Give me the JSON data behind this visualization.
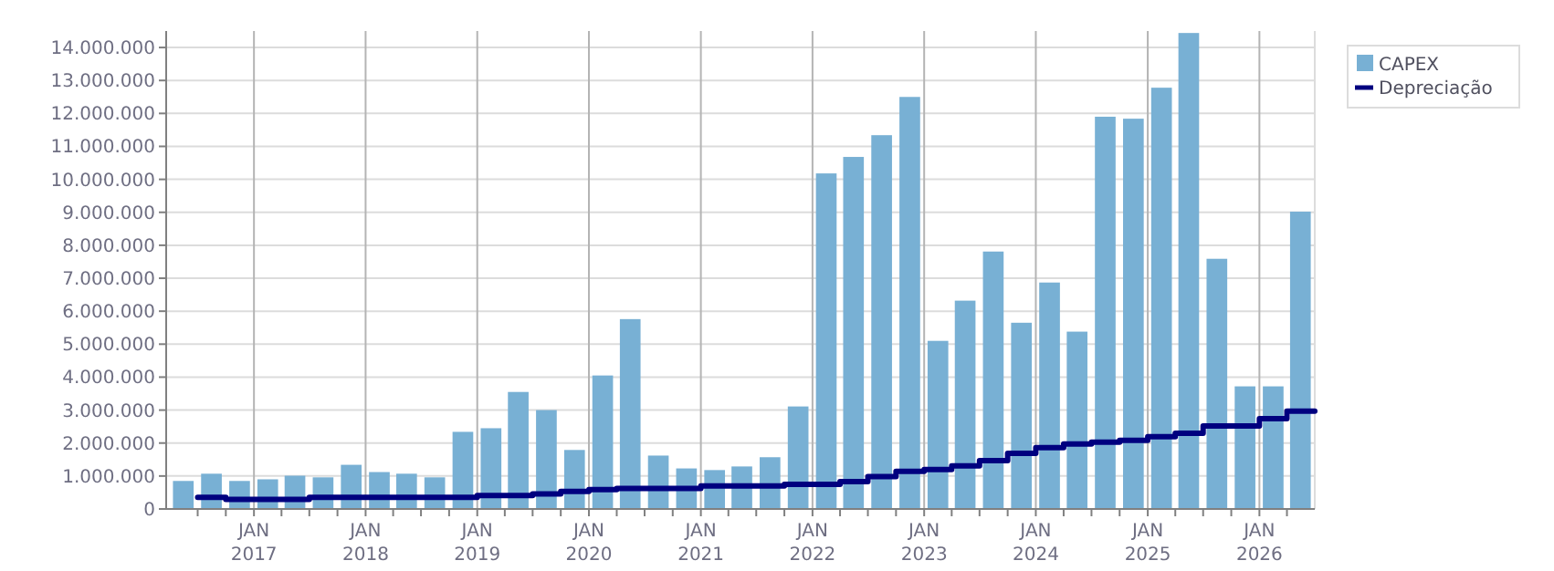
{
  "chart_data": {
    "type": "bar",
    "x": [
      "2016-05-15",
      "2016-08-15",
      "2016-11-15",
      "2017-02-15",
      "2017-05-15",
      "2017-08-15",
      "2017-11-15",
      "2018-02-15",
      "2018-05-15",
      "2018-08-15",
      "2018-11-15",
      "2019-02-15",
      "2019-05-15",
      "2019-08-15",
      "2019-11-15",
      "2020-02-15",
      "2020-05-15",
      "2020-08-15",
      "2020-11-15",
      "2021-02-15",
      "2021-05-15",
      "2021-08-15",
      "2021-11-15",
      "2022-02-15",
      "2022-05-15",
      "2022-08-15",
      "2022-11-15",
      "2023-02-15",
      "2023-05-15",
      "2023-08-15",
      "2023-11-15",
      "2024-02-15",
      "2024-05-15",
      "2024-08-15",
      "2024-11-15",
      "2025-02-15",
      "2025-05-15",
      "2025-08-15",
      "2025-11-15",
      "2026-02-15",
      "2026-05-15"
    ],
    "series": [
      {
        "name": "CAPEX",
        "color": "#78b0d4",
        "values": [
          850000,
          1070000,
          850000,
          900000,
          1010000,
          960000,
          1340000,
          1120000,
          1070000,
          960000,
          2340000,
          2450000,
          3550000,
          3000000,
          1790000,
          4050000,
          5760000,
          1620000,
          1230000,
          1180000,
          1290000,
          1570000,
          3110000,
          10180000,
          10680000,
          11340000,
          12500000,
          5100000,
          6320000,
          7810000,
          5650000,
          6870000,
          5380000,
          11900000,
          11840000,
          12780000,
          14440000,
          7590000,
          3720000,
          3720000,
          9020000
        ]
      },
      {
        "name": "Depreciação",
        "type": "step",
        "color": "#00007f",
        "x": [
          "2016-07-01",
          "2016-10-01",
          "2017-01-01",
          "2017-04-01",
          "2017-07-01",
          "2017-10-01",
          "2018-01-01",
          "2018-04-01",
          "2018-07-01",
          "2018-10-01",
          "2019-01-01",
          "2019-04-01",
          "2019-07-01",
          "2019-10-01",
          "2020-01-01",
          "2020-04-01",
          "2020-07-01",
          "2020-10-01",
          "2021-01-01",
          "2021-04-01",
          "2021-07-01",
          "2021-10-01",
          "2022-01-01",
          "2022-04-01",
          "2022-07-01",
          "2022-10-01",
          "2023-01-01",
          "2023-04-01",
          "2023-07-01",
          "2023-10-01",
          "2024-01-01",
          "2024-04-01",
          "2024-07-01",
          "2024-10-01",
          "2025-01-01",
          "2025-04-01",
          "2025-07-01",
          "2025-10-01",
          "2026-01-01",
          "2026-04-01",
          "2026-07-01"
        ],
        "values": [
          350000,
          290000,
          290000,
          290000,
          350000,
          350000,
          350000,
          350000,
          350000,
          350000,
          410000,
          410000,
          460000,
          530000,
          590000,
          620000,
          620000,
          620000,
          700000,
          700000,
          700000,
          750000,
          750000,
          830000,
          980000,
          1140000,
          1200000,
          1310000,
          1470000,
          1690000,
          1860000,
          1970000,
          2030000,
          2080000,
          2190000,
          2300000,
          2520000,
          2520000,
          2740000,
          2970000,
          2970000
        ]
      }
    ],
    "xlim": [
      "2016-03-20",
      "2026-07-01"
    ],
    "xticks": [
      {
        "value": "2016-07-01",
        "label": null
      },
      {
        "value": "2016-10-01",
        "label": null
      },
      {
        "value": "2017-01-01",
        "label": "JAN 2017"
      },
      {
        "value": "2017-04-01",
        "label": null
      },
      {
        "value": "2017-07-01",
        "label": null
      },
      {
        "value": "2017-10-01",
        "label": null
      },
      {
        "value": "2018-01-01",
        "label": "JAN 2018"
      },
      {
        "value": "2018-04-01",
        "label": null
      },
      {
        "value": "2018-07-01",
        "label": null
      },
      {
        "value": "2018-10-01",
        "label": null
      },
      {
        "value": "2019-01-01",
        "label": "JAN 2019"
      },
      {
        "value": "2019-04-01",
        "label": null
      },
      {
        "value": "2019-07-01",
        "label": null
      },
      {
        "value": "2019-10-01",
        "label": null
      },
      {
        "value": "2020-01-01",
        "label": "JAN 2020"
      },
      {
        "value": "2020-04-01",
        "label": null
      },
      {
        "value": "2020-07-01",
        "label": null
      },
      {
        "value": "2020-10-01",
        "label": null
      },
      {
        "value": "2021-01-01",
        "label": "JAN 2021"
      },
      {
        "value": "2021-04-01",
        "label": null
      },
      {
        "value": "2021-07-01",
        "label": null
      },
      {
        "value": "2021-10-01",
        "label": null
      },
      {
        "value": "2022-01-01",
        "label": "JAN 2022"
      },
      {
        "value": "2022-04-01",
        "label": null
      },
      {
        "value": "2022-07-01",
        "label": null
      },
      {
        "value": "2022-10-01",
        "label": null
      },
      {
        "value": "2023-01-01",
        "label": "JAN 2023"
      },
      {
        "value": "2023-04-01",
        "label": null
      },
      {
        "value": "2023-07-01",
        "label": null
      },
      {
        "value": "2023-10-01",
        "label": null
      },
      {
        "value": "2024-01-01",
        "label": "JAN 2024"
      },
      {
        "value": "2024-04-01",
        "label": null
      },
      {
        "value": "2024-07-01",
        "label": null
      },
      {
        "value": "2024-10-01",
        "label": null
      },
      {
        "value": "2025-01-01",
        "label": "JAN 2025"
      },
      {
        "value": "2025-04-01",
        "label": null
      },
      {
        "value": "2025-07-01",
        "label": null
      },
      {
        "value": "2025-10-01",
        "label": null
      },
      {
        "value": "2026-01-01",
        "label": "JAN 2026"
      },
      {
        "value": "2026-04-01",
        "label": null
      }
    ],
    "ylim": [
      0,
      14500000
    ],
    "yticks": [
      0,
      {
        "value": 1000000,
        "label": "1.000.000"
      },
      {
        "value": 2000000,
        "label": "2.000.000"
      },
      {
        "value": 3000000,
        "label": "3.000.000"
      },
      {
        "value": 4000000,
        "label": "4.000.000"
      },
      {
        "value": 5000000,
        "label": "5.000.000"
      },
      {
        "value": 6000000,
        "label": "6.000.000"
      },
      {
        "value": 7000000,
        "label": "7.000.000"
      },
      {
        "value": 8000000,
        "label": "8.000.000"
      },
      {
        "value": 9000000,
        "label": "9.000.000"
      },
      {
        "value": 10000000,
        "label": "10.000.000"
      },
      {
        "value": 11000000,
        "label": "11.000.000"
      },
      {
        "value": 12000000,
        "label": "12.000.000"
      },
      {
        "value": 13000000,
        "label": "13.000.000"
      },
      {
        "value": 14000000,
        "label": "14.000.000"
      }
    ],
    "grid": true,
    "legend": "top right"
  }
}
